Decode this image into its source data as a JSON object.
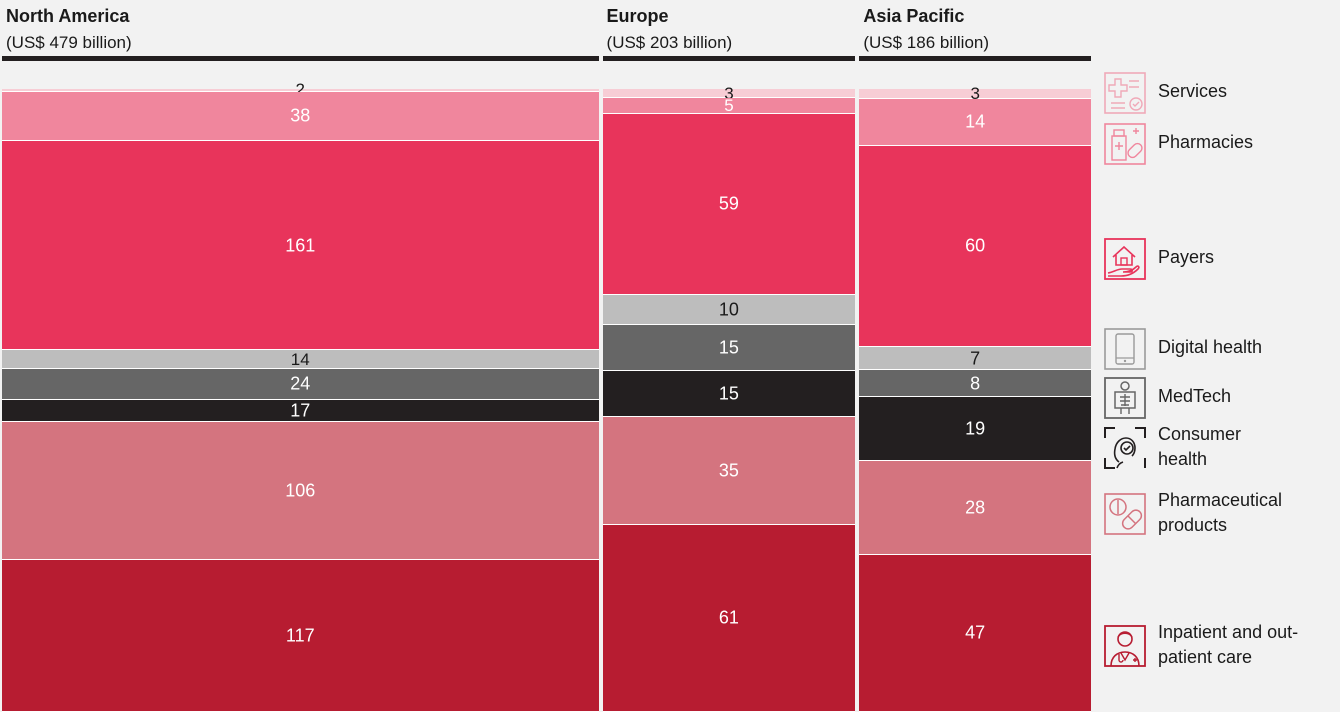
{
  "chart_data": {
    "type": "bar",
    "variant": "marimekko-stacked-100",
    "regions": [
      {
        "name": "North America",
        "total_label": "(US$ 479 billion)",
        "total": 479,
        "values": {
          "services": 2,
          "pharmacies": 38,
          "payers": 161,
          "digital_health": 14,
          "medtech": 24,
          "consumer_health": 17,
          "pharmaceutical_products": 106,
          "care": 117
        }
      },
      {
        "name": "Europe",
        "total_label": "(US$ 203 billion)",
        "total": 203,
        "values": {
          "services": 3,
          "pharmacies": 5,
          "payers": 59,
          "digital_health": 10,
          "medtech": 15,
          "consumer_health": 15,
          "pharmaceutical_products": 35,
          "care": 61
        }
      },
      {
        "name": "Asia Pacific",
        "total_label": "(US$ 186 billion)",
        "total": 186,
        "values": {
          "services": 3,
          "pharmacies": 14,
          "payers": 60,
          "digital_health": 7,
          "medtech": 8,
          "consumer_health": 19,
          "pharmaceutical_products": 28,
          "care": 47
        }
      }
    ],
    "series": [
      {
        "key": "services",
        "name": "Services",
        "color": "#f7cdd5",
        "label_color": "#1a1a1a",
        "icon": "medical-services-icon"
      },
      {
        "key": "pharmacies",
        "name": "Pharmacies",
        "color": "#f0869d",
        "label_color": "#ffffff",
        "icon": "pharmacy-icon"
      },
      {
        "key": "payers",
        "name": "Payers",
        "color": "#e8345b",
        "label_color": "#ffffff",
        "icon": "house-hand-icon"
      },
      {
        "key": "digital_health",
        "name": "Digital health",
        "color": "#bdbdbd",
        "label_color": "#1a1a1a",
        "icon": "smartphone-icon"
      },
      {
        "key": "medtech",
        "name": "MedTech",
        "color": "#666666",
        "label_color": "#ffffff",
        "icon": "xray-icon"
      },
      {
        "key": "consumer_health",
        "name": "Consumer health",
        "label_lines": [
          "Consumer",
          "health"
        ],
        "color": "#231f20",
        "label_color": "#ffffff",
        "icon": "face-scan-icon"
      },
      {
        "key": "pharmaceutical_products",
        "name": "Pharmaceutical products",
        "label_lines": [
          "Pharmaceutical",
          "products"
        ],
        "color": "#d4747f",
        "label_color": "#ffffff",
        "icon": "pills-icon"
      },
      {
        "key": "care",
        "name": "Inpatient and out-patient care",
        "label_lines": [
          "Inpatient and out-",
          "patient care"
        ],
        "color": "#b71c31",
        "label_color": "#ffffff",
        "icon": "doctor-icon"
      }
    ],
    "legend_position": "right",
    "grid": false
  }
}
